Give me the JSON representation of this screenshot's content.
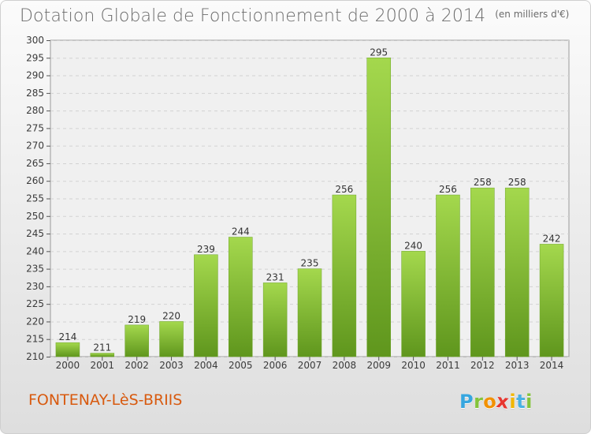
{
  "header": {
    "title": "Dotation Globale de Fonctionnement de 2000 à 2014",
    "subtitle": "(en milliers d'€)"
  },
  "footer": {
    "municipality": "FONTENAY-LèS-BRIIS",
    "logo": {
      "letters": [
        "P",
        "r",
        "o",
        "x",
        "i",
        "t",
        "i"
      ],
      "colors": [
        "#36a6df",
        "#84c33b",
        "#f29100",
        "#e73630",
        "#f2b600",
        "#47b1e4",
        "#84c33b"
      ]
    }
  },
  "chart_data": {
    "type": "bar",
    "title": "Dotation Globale de Fonctionnement de 2000 à 2014",
    "subtitle": "(en milliers d'€)",
    "xlabel": "",
    "ylabel": "",
    "categories": [
      "2000",
      "2001",
      "2002",
      "2003",
      "2004",
      "2005",
      "2006",
      "2007",
      "2008",
      "2009",
      "2010",
      "2011",
      "2012",
      "2013",
      "2014"
    ],
    "values": [
      214,
      211,
      219,
      220,
      239,
      244,
      231,
      235,
      256,
      295,
      240,
      256,
      258,
      258,
      242
    ],
    "ylim": [
      210,
      300
    ],
    "yticks": [
      210,
      215,
      220,
      225,
      230,
      235,
      240,
      245,
      250,
      255,
      260,
      265,
      270,
      275,
      280,
      285,
      290,
      295,
      300
    ],
    "grid": true,
    "bar_color": "#7fbe2e",
    "bar_highlight_color": "#a4d84d",
    "bar_shadow_color": "#5f961d"
  }
}
